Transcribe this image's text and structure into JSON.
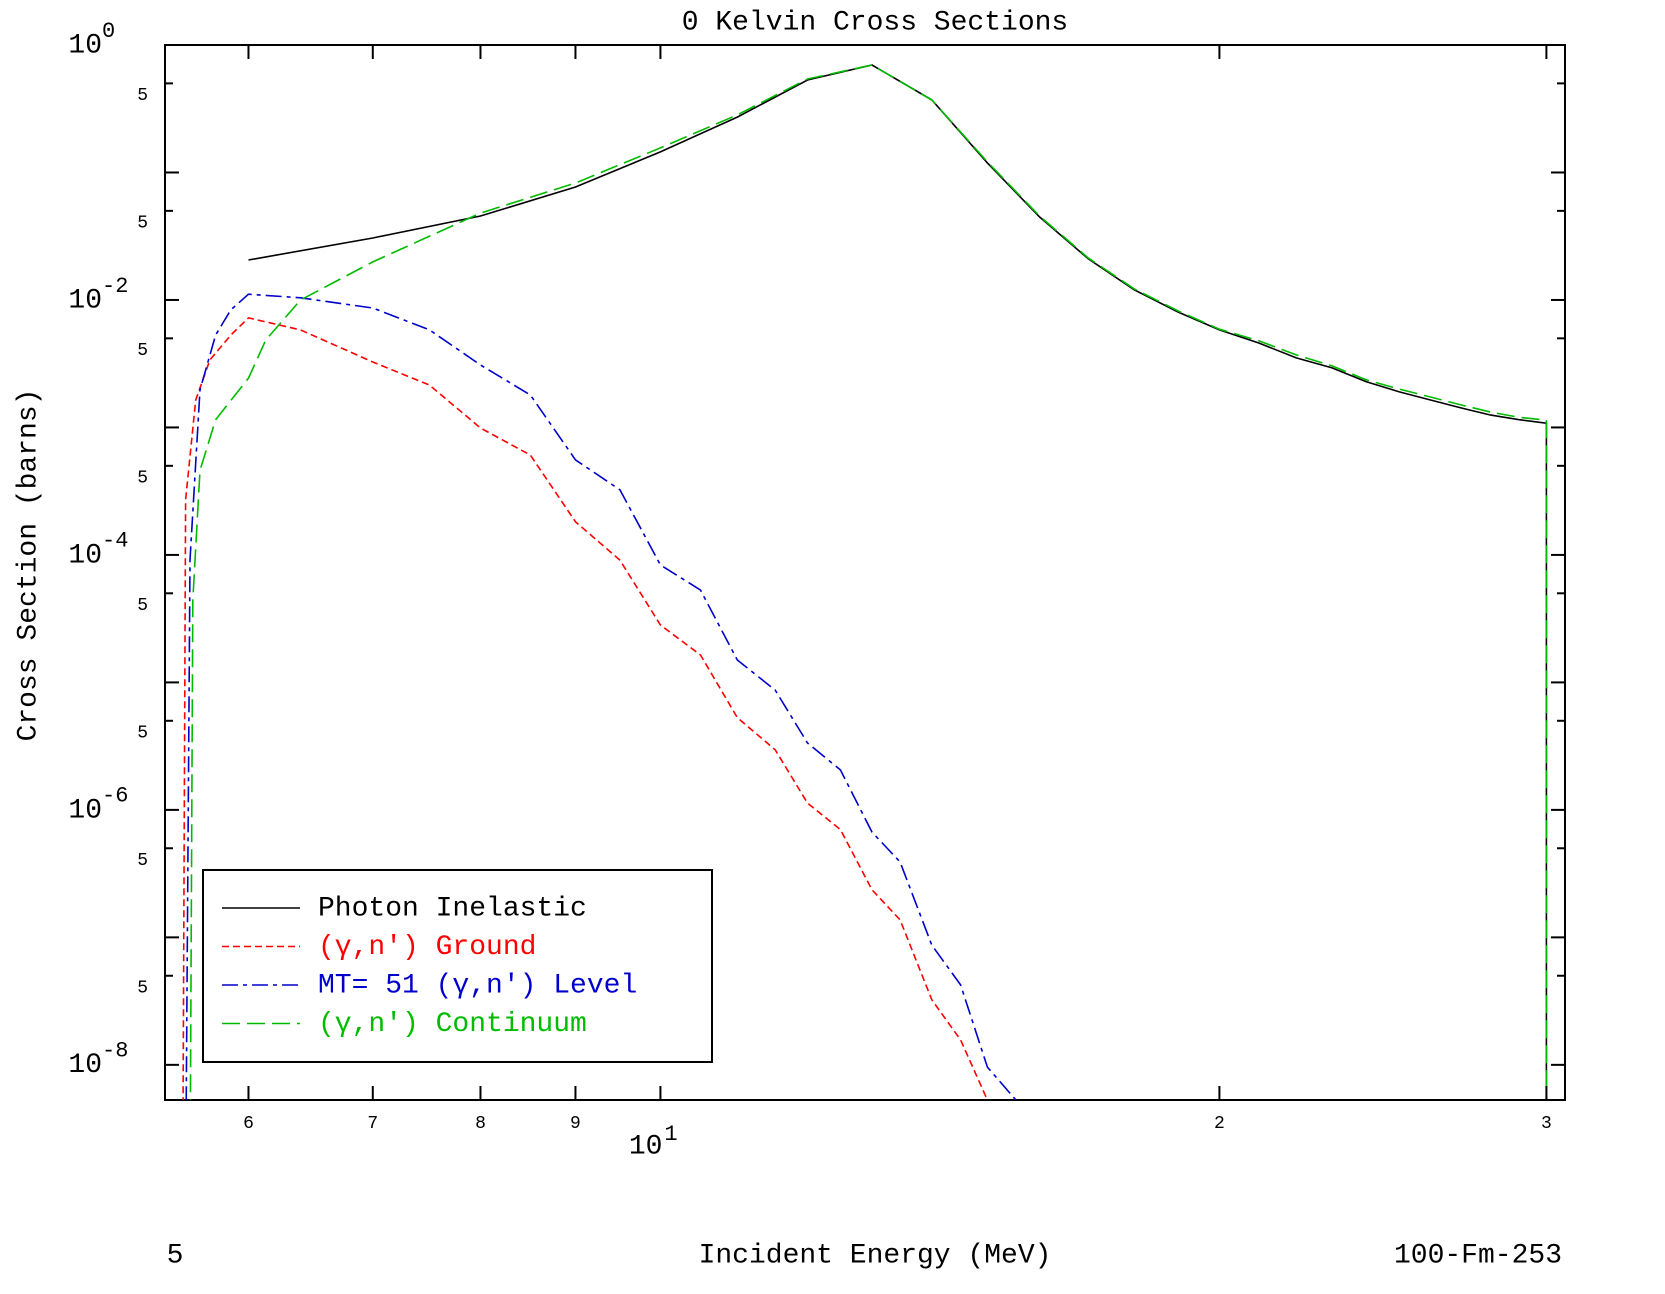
{
  "chart_data": {
    "type": "line",
    "title": "0 Kelvin Cross Sections",
    "x_label": "Incident Energy (MeV)",
    "y_label": "Cross Section (barns)",
    "corner_left": "5",
    "corner_right": "100-Fm-253",
    "x_scale": "log",
    "y_scale": "log",
    "legend": "lower left",
    "xlim": [
      5.41,
      30.7
    ],
    "ylim": [
      5.3e-09,
      1
    ],
    "xticks": [
      6,
      7,
      8,
      9,
      {
        "value": 10,
        "label": "10",
        "exponent": "1"
      },
      {
        "value": 20,
        "label": "2"
      },
      {
        "value": 30,
        "label": "3"
      }
    ],
    "yticks": [
      {
        "value": 1,
        "label": "10",
        "exponent": "0"
      },
      {
        "value": 0.5,
        "label": "5"
      },
      {
        "value": 0.1,
        "label": null
      },
      {
        "value": 0.05,
        "label": "5"
      },
      {
        "value": 0.01,
        "label": "10",
        "exponent": "-2"
      },
      {
        "value": 0.005,
        "label": "5"
      },
      {
        "value": 0.001,
        "label": null
      },
      {
        "value": 0.0005,
        "label": "5"
      },
      {
        "value": 0.0001,
        "label": "10",
        "exponent": "-4"
      },
      {
        "value": 5e-05,
        "label": "5"
      },
      {
        "value": 1e-05,
        "label": null
      },
      {
        "value": 5e-06,
        "label": "5"
      },
      {
        "value": 1e-06,
        "label": "10",
        "exponent": "-6"
      },
      {
        "value": 5e-07,
        "label": "5"
      },
      {
        "value": 1e-07,
        "label": null
      },
      {
        "value": 5e-08,
        "label": "5"
      },
      {
        "value": 1e-08,
        "label": "10",
        "exponent": "-8"
      }
    ],
    "series": [
      {
        "name": "Photon Inelastic",
        "color": "#000000",
        "linestyle": "solid",
        "x": [
          6,
          7,
          8,
          9,
          10,
          11,
          12,
          13,
          14,
          15,
          16,
          17,
          18,
          19,
          20,
          21,
          22,
          23,
          24,
          25,
          26,
          27,
          28,
          29,
          30,
          30
        ],
        "values": [
          0.0206,
          0.0306,
          0.0456,
          0.0769,
          0.145,
          0.272,
          0.531,
          0.697,
          0.371,
          0.119,
          0.0448,
          0.021,
          0.012,
          0.00805,
          0.00582,
          0.0046,
          0.00351,
          0.00293,
          0.00228,
          0.0019,
          0.00164,
          0.00142,
          0.00125,
          0.00115,
          0.00108,
          1e-10
        ]
      },
      {
        "name": "(γ,n′) Ground",
        "color": "#ff0000",
        "linestyle": "dashed",
        "x": [
          5.53,
          5.55,
          5.62,
          5.72,
          5.87,
          6,
          6.4,
          7,
          7.51,
          8,
          8.51,
          9,
          9.51,
          10,
          10.51,
          11,
          11.53,
          12,
          12.5,
          13,
          13.46,
          14,
          14.51,
          15,
          15.2
        ],
        "values": [
          1e-09,
          0.00027,
          0.00164,
          0.00339,
          0.0053,
          0.00723,
          0.00582,
          0.00326,
          0.00215,
          0.00099,
          0.000608,
          0.000182,
          9.1e-05,
          2.82e-05,
          1.64e-05,
          5.3e-06,
          2.96e-06,
          1.13e-06,
          7e-07,
          2.36e-07,
          1.37e-07,
          3.24e-08,
          1.57e-08,
          5.3e-09,
          3e-09
        ]
      },
      {
        "name": "MT= 51 (γ,n′) Level",
        "color": "#0000cc",
        "linestyle": "dashdot",
        "x": [
          5.55,
          5.58,
          5.65,
          5.76,
          5.87,
          6,
          6.4,
          7,
          7.51,
          8,
          8.51,
          9,
          9.51,
          10,
          10.51,
          11,
          11.53,
          12,
          12.5,
          13,
          13.46,
          14,
          14.51,
          15,
          15.54
        ],
        "values": [
          1e-09,
          9.1e-05,
          0.00197,
          0.0053,
          0.00835,
          0.0111,
          0.0104,
          0.00865,
          0.00582,
          0.00309,
          0.0018,
          0.000556,
          0.000324,
          8.35e-05,
          5.3e-05,
          1.5e-05,
          8.7e-06,
          3.35e-06,
          2.06e-06,
          6.7e-07,
          3.9e-07,
          8.7e-08,
          4.24e-08,
          9.6e-09,
          5.3e-09
        ]
      },
      {
        "name": "(γ,n′) Continuum",
        "color": "#00bb00",
        "linestyle": "longdash",
        "x": [
          5.58,
          5.6,
          5.65,
          5.76,
          6,
          6.13,
          6.4,
          7,
          8,
          9,
          10,
          11,
          12,
          13,
          14,
          15,
          16,
          17,
          18,
          19,
          20,
          21,
          22,
          23,
          24,
          25,
          26,
          27,
          28,
          29,
          30,
          30
        ],
        "values": [
          1e-09,
          4.4e-05,
          0.00046,
          0.00115,
          0.00244,
          0.00485,
          0.01,
          0.0199,
          0.048,
          0.0827,
          0.156,
          0.283,
          0.541,
          0.697,
          0.371,
          0.121,
          0.0456,
          0.0213,
          0.0122,
          0.0082,
          0.0059,
          0.00478,
          0.00371,
          0.00304,
          0.00236,
          0.002,
          0.00173,
          0.0015,
          0.00132,
          0.0012,
          0.00114,
          1e-10
        ]
      }
    ]
  }
}
